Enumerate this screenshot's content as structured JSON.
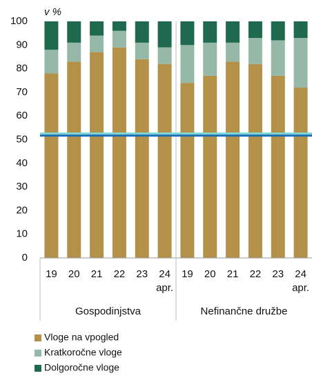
{
  "chart_data": {
    "type": "bar",
    "stacked": true,
    "y_label": "v %",
    "categories": [
      "19",
      "20",
      "21",
      "22",
      "23",
      "24",
      "19",
      "20",
      "21",
      "22",
      "23",
      "24"
    ],
    "category_note": "apr.",
    "groups": [
      "Gospodinjstva",
      "Nefinančne družbe"
    ],
    "series": [
      {
        "name": "Vloge na vpogled",
        "color": "#b39149",
        "values": [
          78,
          83,
          87,
          89,
          84,
          82,
          74,
          77,
          83,
          82,
          77,
          72
        ]
      },
      {
        "name": "Kratkoročne vloge",
        "color": "#95b8a9",
        "values": [
          10,
          8,
          7,
          7,
          7,
          7,
          16,
          14,
          8,
          11,
          15,
          21
        ]
      },
      {
        "name": "Dolgoročne vloge",
        "color": "#1f6a4e",
        "values": [
          12,
          9,
          6,
          4,
          9,
          11,
          10,
          9,
          9,
          7,
          8,
          7
        ]
      }
    ],
    "reference_line": {
      "value": 52,
      "color": "#1f6fb5",
      "halo": "#7fd6d6"
    },
    "ylim": [
      0,
      100
    ],
    "yticks": [
      0,
      10,
      20,
      30,
      40,
      50,
      60,
      70,
      80,
      90,
      100
    ]
  }
}
